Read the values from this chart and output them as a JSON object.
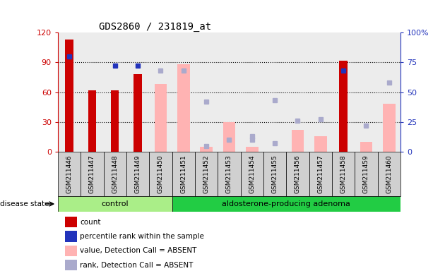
{
  "title": "GDS2860 / 231819_at",
  "samples": [
    "GSM211446",
    "GSM211447",
    "GSM211448",
    "GSM211449",
    "GSM211450",
    "GSM211451",
    "GSM211452",
    "GSM211453",
    "GSM211454",
    "GSM211455",
    "GSM211456",
    "GSM211457",
    "GSM211458",
    "GSM211459",
    "GSM211460"
  ],
  "count_values": [
    113,
    62,
    62,
    78,
    null,
    null,
    null,
    null,
    null,
    null,
    null,
    null,
    92,
    null,
    null
  ],
  "percentile_rank_values": [
    80,
    null,
    72,
    72,
    null,
    null,
    null,
    null,
    null,
    null,
    null,
    null,
    68,
    null,
    null
  ],
  "absent_value_bars": [
    null,
    null,
    null,
    null,
    68,
    88,
    5,
    30,
    5,
    null,
    22,
    16,
    null,
    10,
    48
  ],
  "absent_rank_dots": [
    null,
    null,
    null,
    null,
    68,
    68,
    5,
    10,
    10,
    7,
    26,
    27,
    null,
    22,
    58
  ],
  "absent_rank_dots2": [
    null,
    null,
    null,
    null,
    null,
    null,
    42,
    null,
    13,
    43,
    null,
    null,
    null,
    null,
    null
  ],
  "ylim_left": [
    0,
    120
  ],
  "ylim_right": [
    0,
    100
  ],
  "yticks_left": [
    0,
    30,
    60,
    90,
    120
  ],
  "yticks_right": [
    0,
    25,
    50,
    75,
    100
  ],
  "control_count": 5,
  "adenoma_count": 10,
  "disease_label": "disease state",
  "control_label": "control",
  "adenoma_label": "aldosterone-producing adenoma",
  "bar_color_red": "#cc0000",
  "bar_color_pink": "#ffb3b3",
  "dot_color_blue_dark": "#2233bb",
  "dot_color_blue_light": "#aaaacc",
  "axis_color_left": "#cc0000",
  "axis_color_right": "#2233bb",
  "bg_gray": "#d0d0d0",
  "bg_green_light": "#aaee88",
  "bg_green_dark": "#22cc44",
  "legend_items": [
    "count",
    "percentile rank within the sample",
    "value, Detection Call = ABSENT",
    "rank, Detection Call = ABSENT"
  ]
}
